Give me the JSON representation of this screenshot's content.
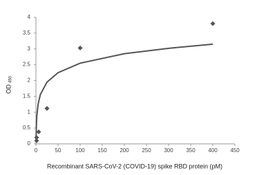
{
  "chart_data": {
    "type": "scatter",
    "xlabel": "Recombinant SARS-CoV-2 (COVID-19) spike RBD protein (pM)",
    "ylabel": {
      "text": "OD",
      "subscript": "450"
    },
    "xlim": [
      0,
      450
    ],
    "xticks": [
      0,
      50,
      100,
      150,
      200,
      250,
      300,
      350,
      400,
      450
    ],
    "ylim": [
      0,
      4
    ],
    "yticks": [
      0,
      0.5,
      1,
      1.5,
      2,
      2.5,
      3,
      3.5,
      4
    ],
    "grid": false,
    "series": [
      {
        "color": "#555555",
        "x": [
          1.5,
          1.5,
          6.25,
          25,
          100,
          400
        ],
        "values": [
          0.1,
          0.2,
          0.38,
          1.12,
          3.03,
          3.8
        ]
      }
    ],
    "trend": {
      "color": "#555555",
      "x": [
        0.3,
        0.5,
        1,
        2,
        5,
        10,
        25,
        50,
        100,
        200,
        300,
        400
      ],
      "values": [
        0.05,
        0.27,
        0.57,
        0.87,
        1.26,
        1.56,
        1.95,
        2.25,
        2.55,
        2.85,
        3.02,
        3.15
      ]
    }
  }
}
